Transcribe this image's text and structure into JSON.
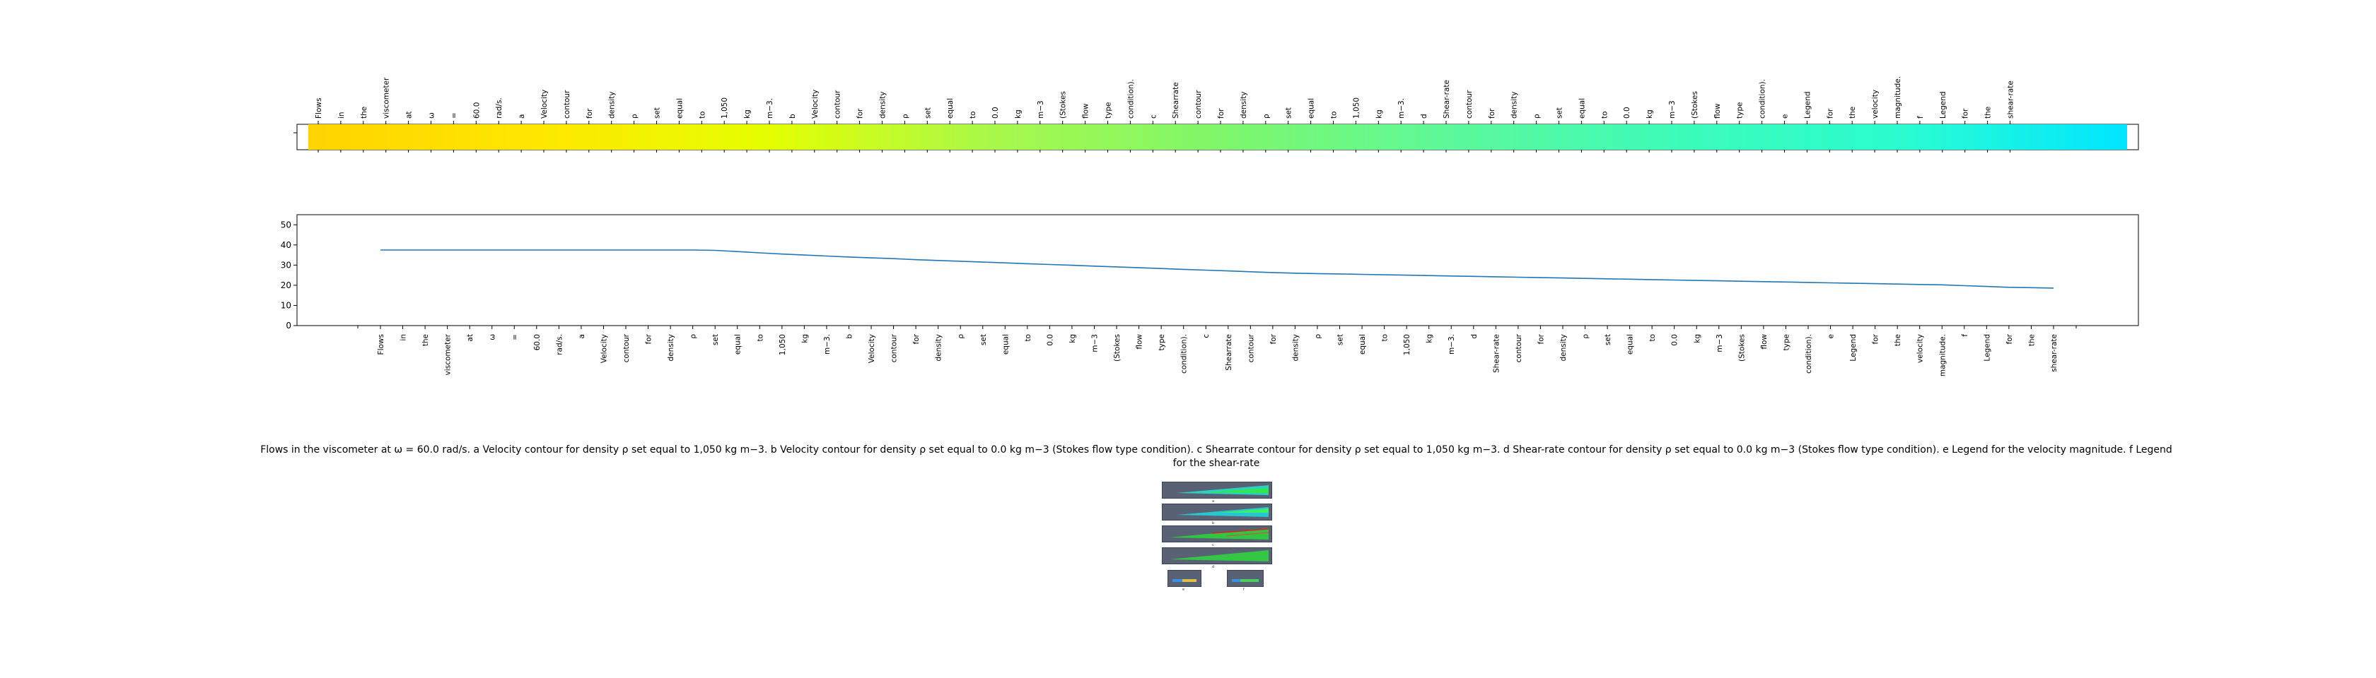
{
  "caption": "Flows in the viscometer at ω = 60.0 rad/s. a Velocity contour for density ρ set equal to 1,050 kg m−3. b Velocity contour for density ρ set equal to 0.0 kg m−3 (Stokes flow type condition). c Shearrate contour for density ρ set equal to 1,050 kg m−3. d Shear-rate contour for density ρ set equal to 0.0 kg m−3 (Stokes flow type condition). e Legend for the velocity magnitude. f Legend for the shear-rate",
  "panel_labels": [
    "a",
    "b",
    "c",
    "d",
    "e",
    "f"
  ],
  "chart_data": [
    {
      "type": "heatmap",
      "colormap": [
        "#ffd400",
        "#ffe700",
        "#e6ff00",
        "#a8f84a",
        "#7ff76a",
        "#5df899",
        "#3dfbb8",
        "#2bfdd0",
        "#00e5ff"
      ],
      "tick_labels": [
        "Flows",
        "in",
        "the",
        "viscometer",
        "at",
        "ω",
        "=",
        "60.0",
        "rad/s.",
        "a",
        "Velocity",
        "contour",
        "for",
        "density",
        "ρ",
        "set",
        "equal",
        "to",
        "1,050",
        "kg",
        "m−3.",
        "b",
        "Velocity",
        "contour",
        "for",
        "density",
        "ρ",
        "set",
        "equal",
        "to",
        "0.0",
        "kg",
        "m−3",
        "(Stokes",
        "flow",
        "type",
        "condition).",
        "c",
        "Shearrate",
        "contour",
        "for",
        "density",
        "ρ",
        "set",
        "equal",
        "to",
        "1,050",
        "kg",
        "m−3.",
        "d",
        "Shear-rate",
        "contour",
        "for",
        "density",
        "ρ",
        "set",
        "equal",
        "to",
        "0.0",
        "kg",
        "m−3",
        "(Stokes",
        "flow",
        "type",
        "condition).",
        "e",
        "Legend",
        "for",
        "the",
        "velocity",
        "magnitude.",
        "f",
        "Legend",
        "for",
        "the",
        "shear-rate"
      ],
      "tick_position": "top"
    },
    {
      "type": "line",
      "categories": [
        "Flows",
        "in",
        "the",
        "viscometer",
        "at",
        "ω",
        "=",
        "60.0",
        "rad/s.",
        "a",
        "Velocity",
        "contour",
        "for",
        "density",
        "ρ",
        "set",
        "equal",
        "to",
        "1,050",
        "kg",
        "m−3.",
        "b",
        "Velocity",
        "contour",
        "for",
        "density",
        "ρ",
        "set",
        "equal",
        "to",
        "0.0",
        "kg",
        "m−3",
        "(Stokes",
        "flow",
        "type",
        "condition).",
        "c",
        "Shearrate",
        "contour",
        "for",
        "density",
        "ρ",
        "set",
        "equal",
        "to",
        "1,050",
        "kg",
        "m−3.",
        "d",
        "Shear-rate",
        "contour",
        "for",
        "density",
        "ρ",
        "set",
        "equal",
        "to",
        "0.0",
        "kg",
        "m−3",
        "(Stokes",
        "flow",
        "type",
        "condition).",
        "e",
        "Legend",
        "for",
        "the",
        "velocity",
        "magnitude.",
        "f",
        "Legend",
        "for",
        "the",
        "shear-rate"
      ],
      "values": [
        37.5,
        37.5,
        37.5,
        37.5,
        37.5,
        37.5,
        37.5,
        37.5,
        37.5,
        37.5,
        37.5,
        37.5,
        37.5,
        37.5,
        37.5,
        37.3,
        36.7,
        36.1,
        35.5,
        35.0,
        34.5,
        34.0,
        33.6,
        33.2,
        32.7,
        32.3,
        31.9,
        31.5,
        31.1,
        30.7,
        30.3,
        29.9,
        29.5,
        29.1,
        28.7,
        28.3,
        27.9,
        27.5,
        27.1,
        26.7,
        26.3,
        26.0,
        25.8,
        25.6,
        25.4,
        25.2,
        25.0,
        24.8,
        24.6,
        24.4,
        24.2,
        24.0,
        23.8,
        23.6,
        23.4,
        23.2,
        23.0,
        22.8,
        22.6,
        22.4,
        22.2,
        22.0,
        21.8,
        21.6,
        21.4,
        21.2,
        21.0,
        20.8,
        20.6,
        20.4,
        20.2,
        19.8,
        19.4,
        19.0,
        18.8,
        18.6
      ],
      "ylim": [
        0,
        55
      ],
      "yticks": [
        0,
        10,
        20,
        30,
        40,
        50
      ],
      "line_color": "#1f77b4",
      "grid": false
    }
  ]
}
